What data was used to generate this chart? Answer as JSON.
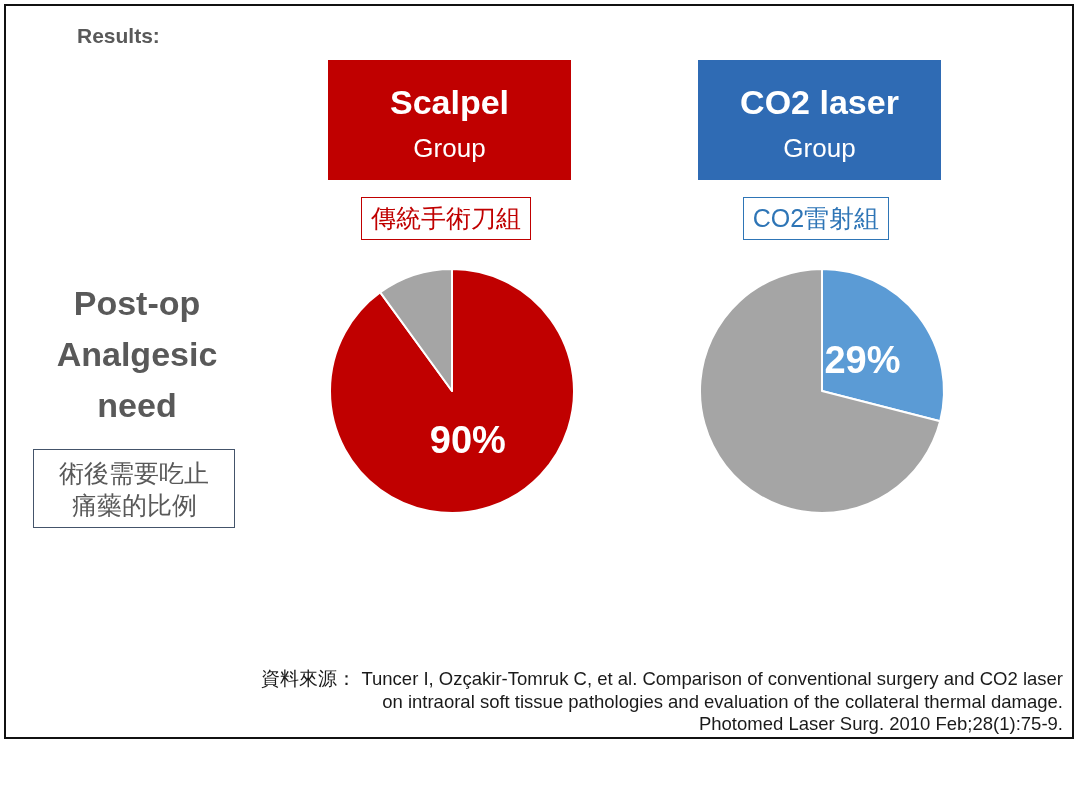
{
  "chart_data": [
    {
      "type": "other",
      "title": "Results:",
      "subtitle": "Post-op Analgesic need",
      "annotations": [
        "術後需要吃止痛藥的比例",
        "資料來源： Tuncer I, Ozçakir-Tomruk C, et al. Comparison of conventional surgery and CO2 laser on intraoral soft tissue pathologies and evaluation of the collateral thermal damage.",
        "Photomed Laser Surg. 2010 Feb;28(1):75-9."
      ]
    },
    {
      "type": "pie",
      "title": "Scalpel",
      "subtitle": "Group",
      "annotations": [
        "傳統手術刀組"
      ],
      "categories": [
        null,
        null
      ],
      "values": [
        90,
        10
      ],
      "colors": [
        "#c00000",
        "#a5a5a5"
      ],
      "value_labels": [
        "90%",
        null
      ]
    },
    {
      "type": "pie",
      "title": "CO2 laser",
      "subtitle": "Group",
      "annotations": [
        "CO2雷射組"
      ],
      "categories": [
        null,
        null
      ],
      "values": [
        29,
        71
      ],
      "colors": [
        "#5b9bd5",
        "#a5a5a5"
      ],
      "value_labels": [
        "29%",
        null
      ]
    }
  ]
}
